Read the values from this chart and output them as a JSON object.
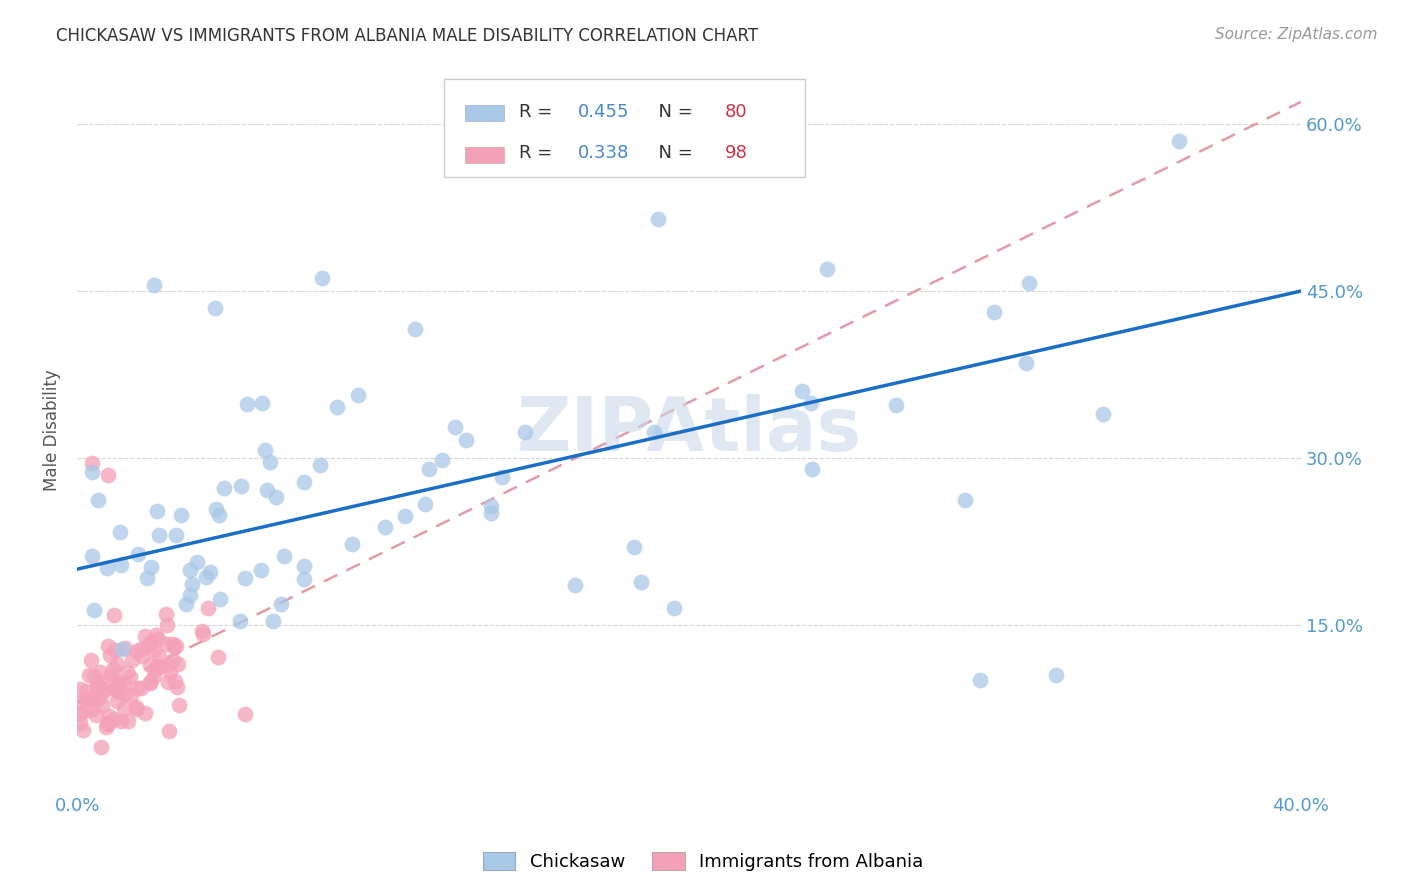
{
  "title": "CHICKASAW VS IMMIGRANTS FROM ALBANIA MALE DISABILITY CORRELATION CHART",
  "source": "Source: ZipAtlas.com",
  "ylabel": "Male Disability",
  "xlim": [
    0.0,
    0.4
  ],
  "ylim": [
    0.0,
    0.65
  ],
  "xtick_positions": [
    0.0,
    0.05,
    0.1,
    0.15,
    0.2,
    0.25,
    0.3,
    0.35,
    0.4
  ],
  "ytick_positions": [
    0.0,
    0.15,
    0.3,
    0.45,
    0.6
  ],
  "ytick_labels": [
    "",
    "15.0%",
    "30.0%",
    "45.0%",
    "60.0%"
  ],
  "chickasaw_R": 0.455,
  "chickasaw_N": 80,
  "albania_R": 0.338,
  "albania_N": 98,
  "scatter_color_chickasaw": "#a8c8e8",
  "scatter_color_albania": "#f4a0b8",
  "line_color_chickasaw": "#1a6ec4",
  "line_color_albania": "#e08898",
  "watermark": "ZIPAtlas",
  "watermark_color": "#c8d8ea",
  "legend_color_chickasaw": "#a8c8e8",
  "legend_color_albania": "#f4a0b8",
  "chick_line_x0": 0.0,
  "chick_line_y0": 0.2,
  "chick_line_x1": 0.4,
  "chick_line_y1": 0.45,
  "alba_line_x0": 0.0,
  "alba_line_y0": 0.08,
  "alba_line_x1": 0.4,
  "alba_line_y1": 0.62
}
